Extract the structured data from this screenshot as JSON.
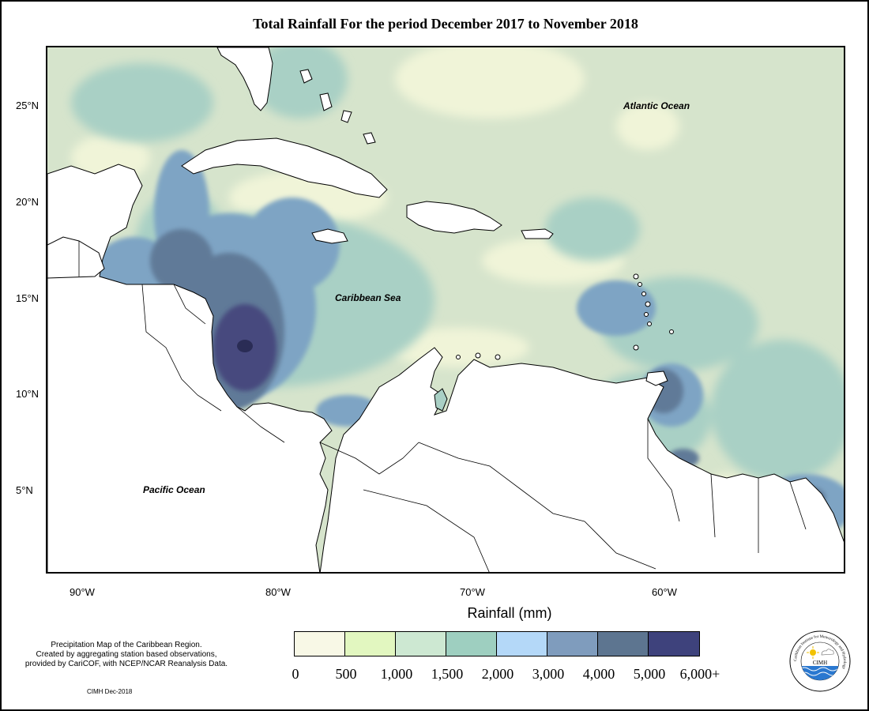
{
  "title": "Total Rainfall For the period December 2017 to November 2018",
  "axes": {
    "x_ticks": [
      "90°W",
      "80°W",
      "70°W",
      "60°W"
    ],
    "y_ticks": [
      "25°N",
      "20°N",
      "15°N",
      "10°N",
      "5°N"
    ]
  },
  "labels": {
    "atlantic": "Atlantic Ocean",
    "caribbean": "Caribbean Sea",
    "pacific": "Pacific Ocean"
  },
  "legend": {
    "title": "Rainfall (mm)",
    "breaks": [
      "0",
      "500",
      "1,000",
      "1,500",
      "2,000",
      "3,000",
      "4,000",
      "5,000",
      "6,000+"
    ],
    "colors": [
      "#f8f8e6",
      "#e2f7c0",
      "#cde8d2",
      "#9ecfc0",
      "#b4d8f8",
      "#7f9cbd",
      "#5d7590",
      "#3e427c"
    ]
  },
  "note": {
    "line1": "Precipitation Map of the Caribbean Region.",
    "line2": "Created by aggregating station based observations,",
    "line3": "provided by CariCOF, with NCEP/NCAR Reanalysis Data."
  },
  "credit": "CIMH Dec-2018",
  "logo": {
    "ring_text": "Caribbean Institute for Meteorology and Hydrology",
    "abbr": "CIMH"
  }
}
